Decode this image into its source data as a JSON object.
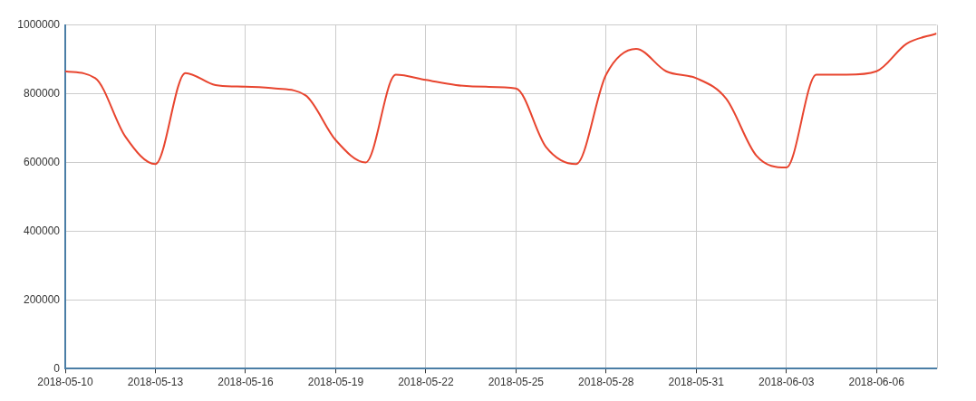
{
  "chart_data": {
    "type": "line",
    "x": [
      "2018-05-10",
      "2018-05-11",
      "2018-05-12",
      "2018-05-13",
      "2018-05-14",
      "2018-05-15",
      "2018-05-16",
      "2018-05-17",
      "2018-05-18",
      "2018-05-19",
      "2018-05-20",
      "2018-05-21",
      "2018-05-22",
      "2018-05-23",
      "2018-05-24",
      "2018-05-25",
      "2018-05-26",
      "2018-05-27",
      "2018-05-28",
      "2018-05-29",
      "2018-05-30",
      "2018-05-31",
      "2018-06-01",
      "2018-06-02",
      "2018-06-03",
      "2018-06-04",
      "2018-06-05",
      "2018-06-06",
      "2018-06-07",
      "2018-06-08"
    ],
    "values": [
      865000,
      845000,
      675000,
      595000,
      860000,
      825000,
      820000,
      815000,
      795000,
      665000,
      600000,
      855000,
      840000,
      825000,
      820000,
      815000,
      645000,
      595000,
      855000,
      930000,
      865000,
      845000,
      785000,
      620000,
      585000,
      855000,
      855000,
      865000,
      945000,
      975000
    ],
    "color": "#e8452f",
    "xlim": [
      "2018-05-10",
      "2018-06-08"
    ],
    "xticks": [
      "2018-05-10",
      "2018-05-13",
      "2018-05-16",
      "2018-05-19",
      "2018-05-22",
      "2018-05-25",
      "2018-05-28",
      "2018-05-31",
      "2018-06-03",
      "2018-06-06"
    ],
    "ylim": [
      0,
      1000000
    ],
    "yticks": [
      0,
      200000,
      400000,
      600000,
      800000,
      1000000
    ],
    "grid": true,
    "marker": "none"
  }
}
